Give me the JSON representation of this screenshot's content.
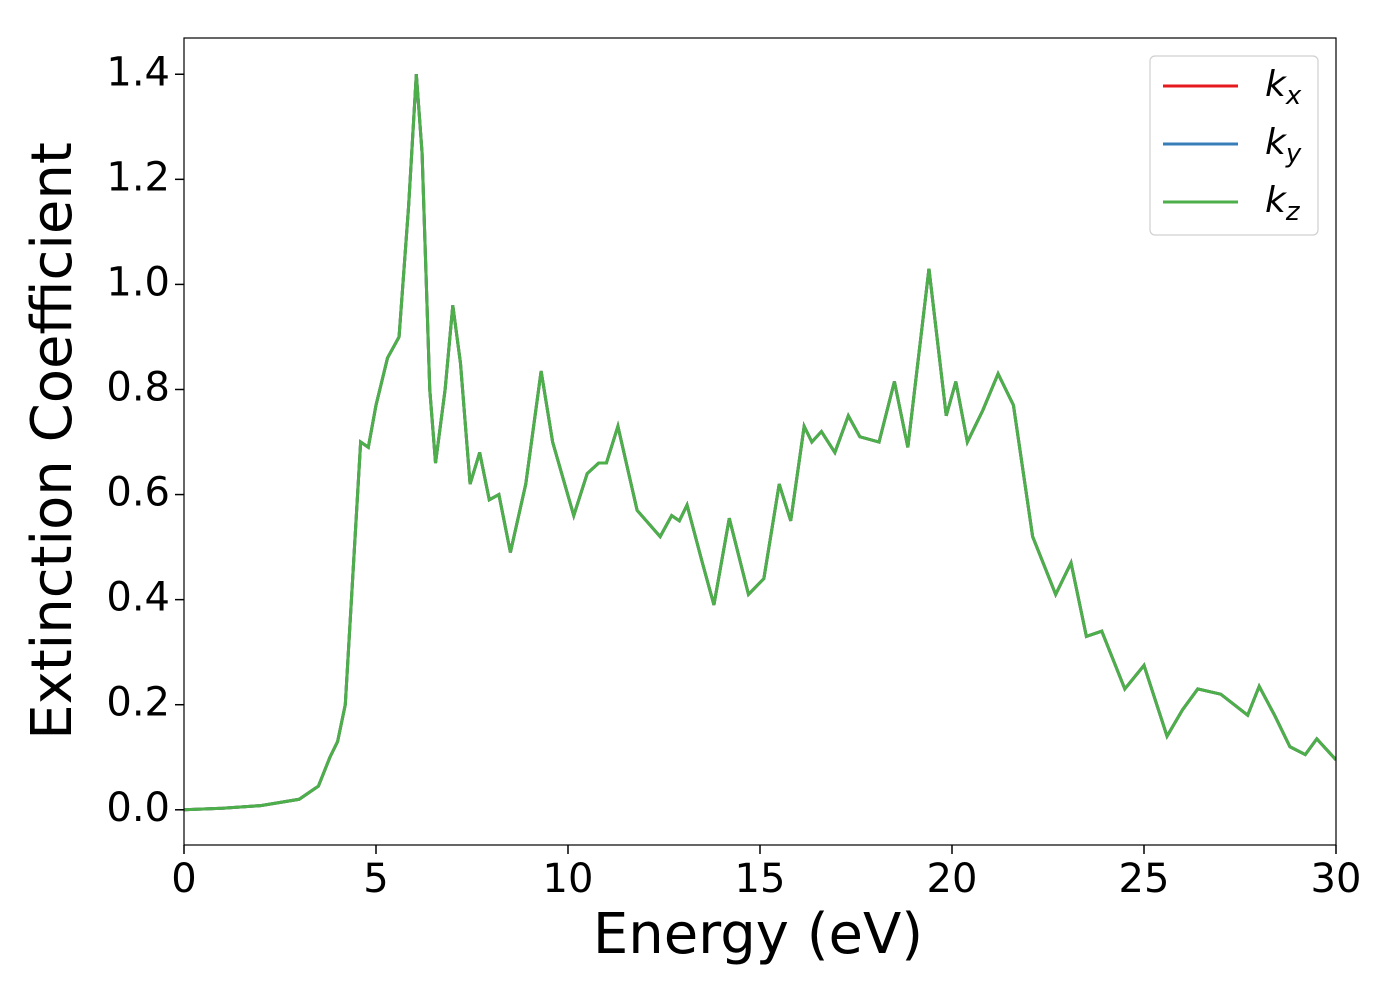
{
  "chart_data": {
    "type": "line",
    "xlabel": "Energy (eV)",
    "ylabel": "Extinction Coefficient",
    "x": [
      0,
      1,
      2,
      3,
      3.5,
      3.8,
      4,
      4.2,
      4.4,
      4.6,
      4.8,
      5,
      5.3,
      5.6,
      5.85,
      6.05,
      6.2,
      6.4,
      6.55,
      6.8,
      7,
      7.2,
      7.45,
      7.7,
      7.95,
      8.2,
      8.5,
      8.9,
      9.3,
      9.6,
      10.15,
      10.5,
      10.8,
      11,
      11.3,
      11.8,
      12.4,
      12.7,
      12.9,
      13.1,
      13.5,
      13.8,
      14.2,
      14.7,
      15.1,
      15.5,
      15.8,
      16.15,
      16.35,
      16.6,
      16.95,
      17.3,
      17.6,
      18.1,
      18.5,
      18.85,
      19.4,
      19.85,
      20.1,
      20.4,
      20.8,
      21.2,
      21.6,
      22.1,
      22.7,
      23.1,
      23.5,
      23.9,
      24.5,
      25,
      25.6,
      26,
      26.4,
      26.7,
      27,
      27.7,
      28,
      28.4,
      28.8,
      29.2,
      29.5,
      30
    ],
    "series": [
      {
        "name": "kx",
        "color": "#e41a1c",
        "values": [
          0,
          0.003,
          0.008,
          0.02,
          0.045,
          0.1,
          0.13,
          0.2,
          0.45,
          0.7,
          0.69,
          0.77,
          0.86,
          0.9,
          1.15,
          1.4,
          1.25,
          0.8,
          0.66,
          0.8,
          0.96,
          0.85,
          0.62,
          0.68,
          0.59,
          0.6,
          0.49,
          0.62,
          0.835,
          0.7,
          0.56,
          0.64,
          0.66,
          0.66,
          0.73,
          0.57,
          0.52,
          0.56,
          0.55,
          0.58,
          0.47,
          0.39,
          0.555,
          0.41,
          0.44,
          0.62,
          0.55,
          0.73,
          0.7,
          0.72,
          0.68,
          0.75,
          0.71,
          0.7,
          0.815,
          0.69,
          1.03,
          0.75,
          0.815,
          0.7,
          0.76,
          0.83,
          0.77,
          0.52,
          0.41,
          0.47,
          0.33,
          0.34,
          0.23,
          0.275,
          0.14,
          0.19,
          0.23,
          0.225,
          0.22,
          0.18,
          0.235,
          0.18,
          0.12,
          0.105,
          0.135,
          0.095
        ]
      },
      {
        "name": "ky",
        "color": "#377eb8",
        "values": [
          0,
          0.003,
          0.008,
          0.02,
          0.045,
          0.1,
          0.13,
          0.2,
          0.45,
          0.7,
          0.69,
          0.77,
          0.86,
          0.9,
          1.15,
          1.4,
          1.25,
          0.8,
          0.66,
          0.8,
          0.96,
          0.85,
          0.62,
          0.68,
          0.59,
          0.6,
          0.49,
          0.62,
          0.835,
          0.7,
          0.56,
          0.64,
          0.66,
          0.66,
          0.73,
          0.57,
          0.52,
          0.56,
          0.55,
          0.58,
          0.47,
          0.39,
          0.555,
          0.41,
          0.44,
          0.62,
          0.55,
          0.73,
          0.7,
          0.72,
          0.68,
          0.75,
          0.71,
          0.7,
          0.815,
          0.69,
          1.03,
          0.75,
          0.815,
          0.7,
          0.76,
          0.83,
          0.77,
          0.52,
          0.41,
          0.47,
          0.33,
          0.34,
          0.23,
          0.275,
          0.14,
          0.19,
          0.23,
          0.225,
          0.22,
          0.18,
          0.235,
          0.18,
          0.12,
          0.105,
          0.135,
          0.095
        ]
      },
      {
        "name": "kz",
        "color": "#4daf4a",
        "values": [
          0,
          0.003,
          0.008,
          0.02,
          0.045,
          0.1,
          0.13,
          0.2,
          0.45,
          0.7,
          0.69,
          0.77,
          0.86,
          0.9,
          1.15,
          1.4,
          1.25,
          0.8,
          0.66,
          0.8,
          0.96,
          0.85,
          0.62,
          0.68,
          0.59,
          0.6,
          0.49,
          0.62,
          0.835,
          0.7,
          0.56,
          0.64,
          0.66,
          0.66,
          0.73,
          0.57,
          0.52,
          0.56,
          0.55,
          0.58,
          0.47,
          0.39,
          0.555,
          0.41,
          0.44,
          0.62,
          0.55,
          0.73,
          0.7,
          0.72,
          0.68,
          0.75,
          0.71,
          0.7,
          0.815,
          0.69,
          1.03,
          0.75,
          0.815,
          0.7,
          0.76,
          0.83,
          0.77,
          0.52,
          0.41,
          0.47,
          0.33,
          0.34,
          0.23,
          0.275,
          0.14,
          0.19,
          0.23,
          0.225,
          0.22,
          0.18,
          0.235,
          0.18,
          0.12,
          0.105,
          0.135,
          0.095
        ]
      }
    ],
    "xlim": [
      0,
      30
    ],
    "xticks": [
      0,
      5,
      10,
      15,
      20,
      25,
      30
    ],
    "ylim": [
      -0.067,
      1.469
    ],
    "yticks": [
      {
        "value": 0,
        "label": "0.0"
      },
      0.2,
      0.4,
      0.6,
      0.8,
      {
        "value": 1,
        "label": "1.0"
      },
      1.2,
      1.4
    ],
    "legend": "upper right",
    "grid": false
  }
}
